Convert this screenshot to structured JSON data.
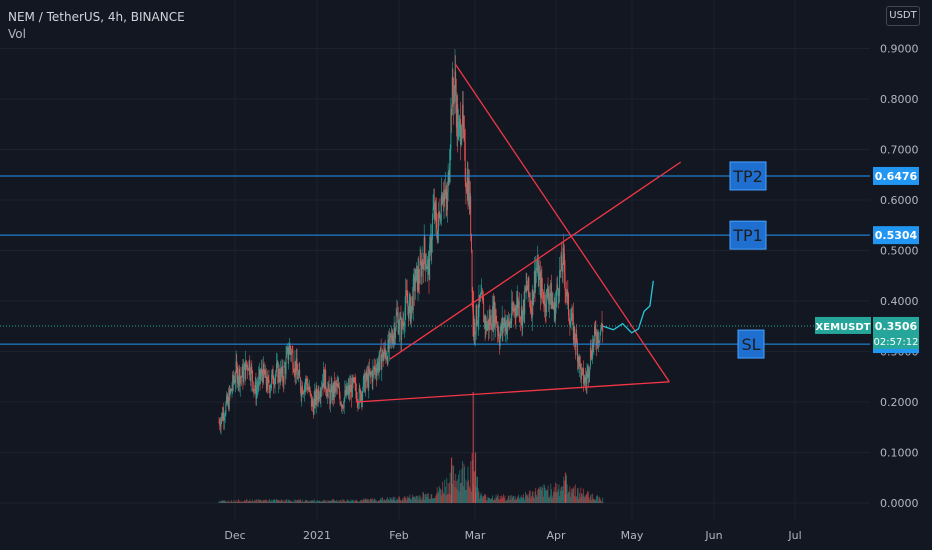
{
  "header": {
    "symbol_line": "NEM / TetherUS, 4h, BINANCE",
    "indicator": "Vol",
    "currency_button": "USDT"
  },
  "colors": {
    "background": "#131722",
    "grid": "#1e222d",
    "up": "#26a69a",
    "down": "#ef5350",
    "trendline": "#f23645",
    "hline": "#2196f3",
    "label_box": "#1e6fd0",
    "label_text": "#1e1e1e",
    "price_tag_green": "#26a69a",
    "price_tag_blue": "#2196f3",
    "projection": "#26c6da"
  },
  "chart_data": {
    "type": "candlestick",
    "x_axis": {
      "ticks": [
        "Dec",
        "2021",
        "Feb",
        "Mar",
        "Apr",
        "May",
        "Jun",
        "Jul"
      ]
    },
    "y_axis": {
      "ticks": [
        "0.9000",
        "0.8000",
        "0.7000",
        "0.6000",
        "0.5000",
        "0.4000",
        "0.3000",
        "0.2000",
        "0.1000",
        "0.0000"
      ],
      "range": [
        0,
        0.9
      ]
    },
    "close_path": [
      [
        0,
        0.16
      ],
      [
        0.8,
        0.2
      ],
      [
        1.5,
        0.26
      ],
      [
        2,
        0.25
      ],
      [
        2.6,
        0.28
      ],
      [
        3.2,
        0.22
      ],
      [
        3.8,
        0.26
      ],
      [
        4.3,
        0.23
      ],
      [
        5,
        0.26
      ],
      [
        5.6,
        0.25
      ],
      [
        6.2,
        0.31
      ],
      [
        6.7,
        0.27
      ],
      [
        7.2,
        0.23
      ],
      [
        7.7,
        0.24
      ],
      [
        8.2,
        0.19
      ],
      [
        8.7,
        0.22
      ],
      [
        9.2,
        0.25
      ],
      [
        9.7,
        0.21
      ],
      [
        10.3,
        0.23
      ],
      [
        10.8,
        0.2
      ],
      [
        11.3,
        0.22
      ],
      [
        11.8,
        0.23
      ],
      [
        12.3,
        0.21
      ],
      [
        12.8,
        0.24
      ],
      [
        13.3,
        0.25
      ],
      [
        13.8,
        0.27
      ],
      [
        14.3,
        0.29
      ],
      [
        14.8,
        0.3
      ],
      [
        15.2,
        0.33
      ],
      [
        15.6,
        0.37
      ],
      [
        16,
        0.34
      ],
      [
        16.4,
        0.4
      ],
      [
        16.8,
        0.38
      ],
      [
        17.2,
        0.44
      ],
      [
        17.6,
        0.45
      ],
      [
        18,
        0.5
      ],
      [
        18.4,
        0.46
      ],
      [
        18.8,
        0.58
      ],
      [
        19.2,
        0.54
      ],
      [
        19.6,
        0.63
      ],
      [
        20,
        0.58
      ],
      [
        20.4,
        0.8
      ],
      [
        20.7,
        0.83
      ],
      [
        21,
        0.72
      ],
      [
        21.3,
        0.77
      ],
      [
        21.6,
        0.66
      ],
      [
        21.9,
        0.62
      ],
      [
        22.1,
        0.55
      ],
      [
        22.3,
        0.34
      ],
      [
        22.6,
        0.37
      ],
      [
        23,
        0.4
      ],
      [
        23.4,
        0.35
      ],
      [
        23.8,
        0.36
      ],
      [
        24.2,
        0.38
      ],
      [
        24.6,
        0.33
      ],
      [
        25,
        0.36
      ],
      [
        25.4,
        0.35
      ],
      [
        25.8,
        0.38
      ],
      [
        26.2,
        0.4
      ],
      [
        26.6,
        0.37
      ],
      [
        27,
        0.43
      ],
      [
        27.4,
        0.39
      ],
      [
        27.8,
        0.47
      ],
      [
        28.2,
        0.43
      ],
      [
        28.6,
        0.4
      ],
      [
        29,
        0.42
      ],
      [
        29.4,
        0.38
      ],
      [
        29.8,
        0.44
      ],
      [
        30.2,
        0.48
      ],
      [
        30.6,
        0.39
      ],
      [
        31,
        0.35
      ],
      [
        31.4,
        0.31
      ],
      [
        31.8,
        0.25
      ],
      [
        32.2,
        0.24
      ],
      [
        32.6,
        0.3
      ],
      [
        33,
        0.33
      ],
      [
        33.4,
        0.34
      ],
      [
        33.7,
        0.35
      ]
    ],
    "projection_path": [
      [
        33.7,
        0.35
      ],
      [
        34.6,
        0.343
      ],
      [
        35.4,
        0.355
      ],
      [
        36.2,
        0.337
      ],
      [
        36.8,
        0.345
      ],
      [
        37.3,
        0.38
      ],
      [
        37.8,
        0.39
      ],
      [
        38.1,
        0.44
      ]
    ],
    "volume_profile": [
      [
        0,
        0.004
      ],
      [
        4,
        0.006
      ],
      [
        8,
        0.005
      ],
      [
        12,
        0.006
      ],
      [
        16,
        0.01
      ],
      [
        19,
        0.02
      ],
      [
        20.5,
        0.055
      ],
      [
        22.3,
        0.075
      ],
      [
        23,
        0.014
      ],
      [
        26,
        0.012
      ],
      [
        29,
        0.03
      ],
      [
        30.5,
        0.04
      ],
      [
        31.5,
        0.025
      ],
      [
        33.7,
        0.008
      ]
    ],
    "horizontal_lines": [
      {
        "name": "TP2",
        "value": 0.6476,
        "tag": "0.6476"
      },
      {
        "name": "TP1",
        "value": 0.5304,
        "tag": "0.5304"
      },
      {
        "name": "SL",
        "value": 0.3147,
        "tag": "0.3147"
      }
    ],
    "current_price": {
      "symbol": "XEMUSDT",
      "value": 0.3506,
      "tag": "0.3506",
      "countdown": "02:57:12"
    },
    "trendlines": [
      {
        "id": "upper-descending",
        "from": [
          20.7,
          0.87
        ],
        "to": [
          39.5,
          0.24
        ]
      },
      {
        "id": "lower-ascending",
        "from": [
          12,
          0.2
        ],
        "to": [
          39.5,
          0.24
        ]
      },
      {
        "id": "rising-support",
        "from": [
          15,
          0.285
        ],
        "to": [
          40.5,
          0.675
        ]
      }
    ]
  }
}
